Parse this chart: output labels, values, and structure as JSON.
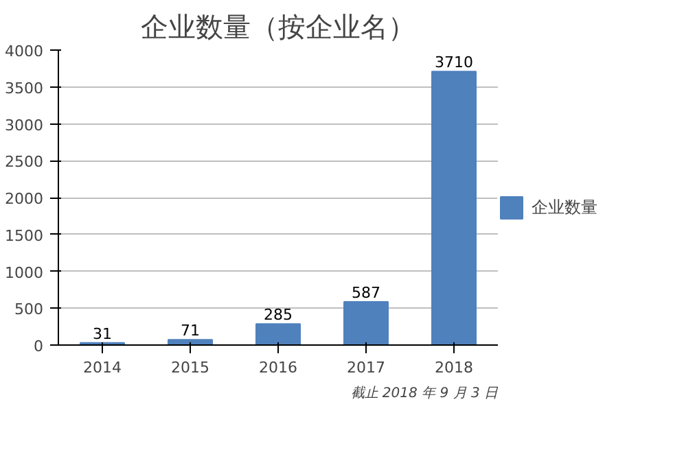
{
  "chart_data": {
    "type": "bar",
    "title": "企业数量（按企业名）",
    "categories": [
      "2014",
      "2015",
      "2016",
      "2017",
      "2018"
    ],
    "series": [
      {
        "name": "企业数量",
        "color": "#4f81bd",
        "values": [
          31,
          71,
          285,
          587,
          3710
        ]
      }
    ],
    "ylim": [
      0,
      4000
    ],
    "yticks": [
      0,
      500,
      1000,
      1500,
      2000,
      2500,
      3000,
      3500,
      4000
    ],
    "grid": "y",
    "legend": "right",
    "data_labels": true,
    "annotations": [
      "截止 2018 年 9 月 3 日"
    ]
  }
}
